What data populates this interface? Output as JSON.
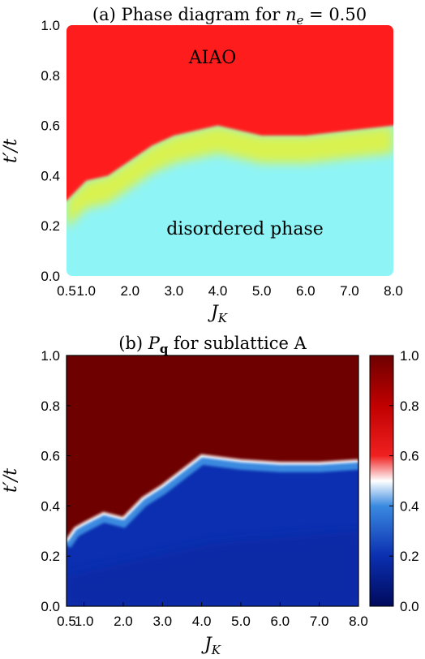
{
  "chart_data": [
    {
      "type": "heatmap",
      "title": "(a) Phase diagram for n_e = 0.50",
      "title_parts": {
        "lead": "(a) Phase diagram for ",
        "var": "n",
        "sub": "e",
        "tail": " = 0.50"
      },
      "xlabel": "J_K",
      "xlabel_parts": {
        "var": "J",
        "sub": "K"
      },
      "ylabel": "t′/t",
      "x_ticks": [
        "0.5",
        "1.0",
        "2.0",
        "3.0",
        "4.0",
        "5.0",
        "6.0",
        "7.0",
        "8.0"
      ],
      "y_ticks": [
        "0.0",
        "0.2",
        "0.4",
        "0.6",
        "0.8",
        "1.0"
      ],
      "ylim": [
        0,
        1
      ],
      "regions": [
        {
          "name": "AIAO",
          "color": "#ff1a1a"
        },
        {
          "name": "disordered phase",
          "color": "#8ff4f6"
        }
      ],
      "boundary": {
        "x": [
          0.5,
          1.0,
          1.5,
          2.0,
          2.5,
          3.0,
          3.5,
          4.0,
          5.0,
          6.0,
          7.0,
          8.0
        ],
        "y": [
          0.3,
          0.38,
          0.4,
          0.46,
          0.52,
          0.56,
          0.58,
          0.6,
          0.56,
          0.56,
          0.58,
          0.6
        ]
      }
    },
    {
      "type": "heatmap",
      "title": "(b) P_q for sublattice A",
      "title_parts": {
        "lead": "(b) ",
        "var": "P",
        "sub": "q",
        "tail": " for sublattice A"
      },
      "xlabel": "J_K",
      "xlabel_parts": {
        "var": "J",
        "sub": "K"
      },
      "ylabel": "t′/t",
      "x_ticks": [
        "0.5",
        "1.0",
        "2.0",
        "3.0",
        "4.0",
        "5.0",
        "6.0",
        "7.0",
        "8.0"
      ],
      "y_ticks": [
        "0.0",
        "0.2",
        "0.4",
        "0.6",
        "0.8",
        "1.0"
      ],
      "ylim": [
        0,
        1
      ],
      "boundary": {
        "x": [
          0.5,
          0.75,
          1.0,
          1.5,
          2.0,
          2.5,
          3.0,
          3.5,
          4.0,
          5.0,
          6.0,
          7.0,
          8.0
        ],
        "y": [
          0.26,
          0.31,
          0.33,
          0.37,
          0.35,
          0.43,
          0.48,
          0.54,
          0.6,
          0.58,
          0.57,
          0.57,
          0.58
        ]
      },
      "high_value": 1.0,
      "low_value": 0.05,
      "colorbar": {
        "ticks": [
          "0.0",
          "0.2",
          "0.4",
          "0.6",
          "0.8",
          "1.0"
        ],
        "range": [
          0,
          1
        ],
        "stops": [
          {
            "v": 0.0,
            "color": "#000a5c"
          },
          {
            "v": 0.2,
            "color": "#0b2fb0"
          },
          {
            "v": 0.4,
            "color": "#3a8ae0"
          },
          {
            "v": 0.5,
            "color": "#ffffff"
          },
          {
            "v": 0.6,
            "color": "#f02020"
          },
          {
            "v": 0.8,
            "color": "#c00000"
          },
          {
            "v": 1.0,
            "color": "#6e0000"
          }
        ]
      }
    }
  ]
}
